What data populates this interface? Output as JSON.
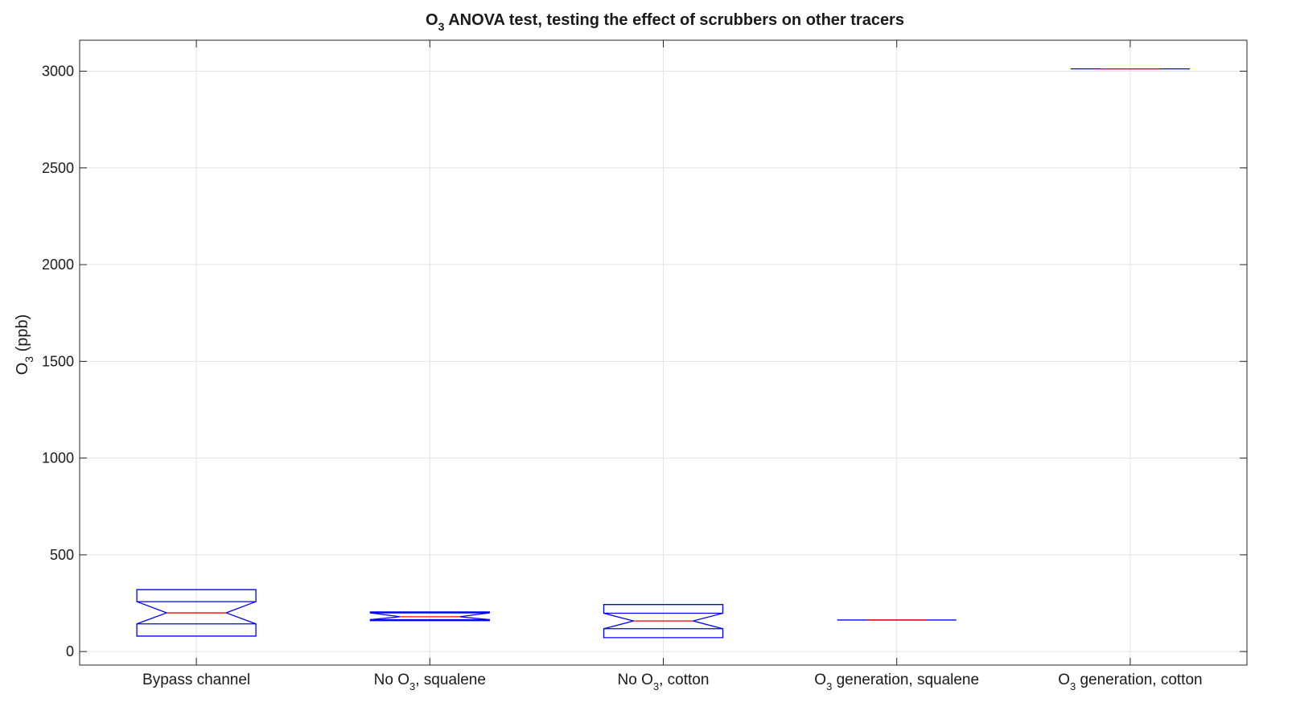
{
  "chart_data": {
    "type": "boxplot",
    "title": {
      "prefix": "O",
      "sub": "3",
      "suffix": " ANOVA test, testing the effect of scrubbers on other tracers"
    },
    "ylabel": {
      "prefix": "O",
      "sub": "3",
      "suffix": " (ppb)"
    },
    "categories": [
      {
        "prefix": "Bypass channel",
        "sub": "",
        "suffix": ""
      },
      {
        "prefix": "No O",
        "sub": "3",
        "suffix": ", squalene"
      },
      {
        "prefix": "No O",
        "sub": "3",
        "suffix": ", cotton"
      },
      {
        "prefix": "O",
        "sub": "3",
        "suffix": " generation, squalene"
      },
      {
        "prefix": "O",
        "sub": "3",
        "suffix": " generation, cotton"
      }
    ],
    "boxes": [
      {
        "q1": 143,
        "median": 200,
        "q3": 258,
        "notch_low": 80,
        "notch_high": 320
      },
      {
        "q1": 165,
        "median": 180,
        "q3": 200,
        "notch_low": 160,
        "notch_high": 205
      },
      {
        "q1": 118,
        "median": 158,
        "q3": 198,
        "notch_low": 72,
        "notch_high": 243
      },
      {
        "q1": 163,
        "median": 163,
        "q3": 163,
        "notch_low": 163,
        "notch_high": 163
      },
      {
        "q1": 3012,
        "median": 3012,
        "q3": 3012,
        "notch_low": 3012,
        "notch_high": 3012
      }
    ],
    "yticks": [
      0,
      500,
      1000,
      1500,
      2000,
      2500,
      3000
    ],
    "ylim": [
      -70,
      3160
    ],
    "grid": true,
    "colors": {
      "box": "#0000ff",
      "median": "#ff0000",
      "grid": "#e3e3e3",
      "axis": "#262626"
    }
  }
}
